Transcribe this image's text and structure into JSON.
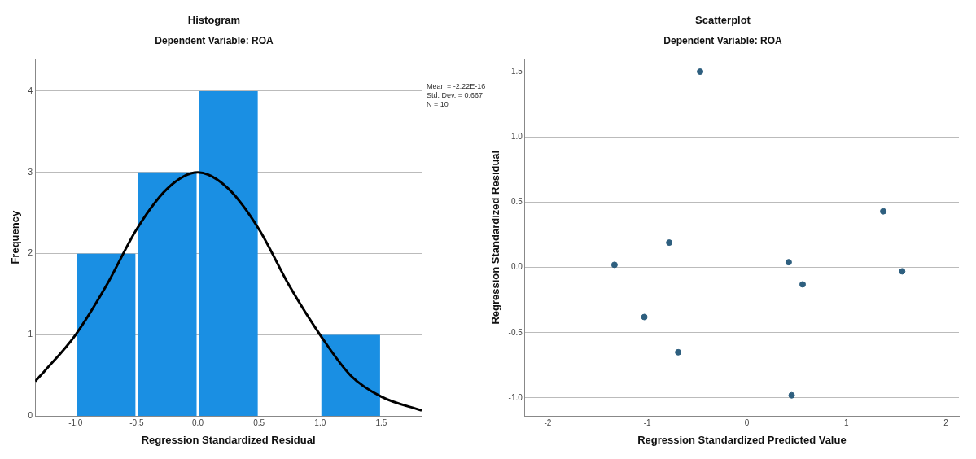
{
  "chart_data": [
    {
      "type": "histogram",
      "title": "Histogram",
      "subtitle": "Dependent Variable: ROA",
      "xlabel": "Regression Standardized Residual",
      "ylabel": "Frequency",
      "bins": [
        -1.0,
        -0.5,
        0.0,
        0.5,
        1.0,
        1.5
      ],
      "values": [
        2,
        3,
        4,
        0,
        1
      ],
      "color": "#1a8fe3",
      "series": [
        {
          "type": "line",
          "color": "#000000",
          "x": [
            -1.33,
            -1.25,
            -1.0,
            -0.75,
            -0.5,
            -0.25,
            0.0,
            0.25,
            0.5,
            0.75,
            1.0,
            1.25,
            1.5,
            1.83
          ],
          "values": [
            0.43,
            0.56,
            1.0,
            1.6,
            2.3,
            2.8,
            3.0,
            2.8,
            2.3,
            1.6,
            1.0,
            0.5,
            0.24,
            0.07
          ]
        }
      ],
      "xlim": [
        -1.33,
        1.83
      ],
      "xticks": [
        {
          "value": -1.0,
          "label": "-1.0"
        },
        {
          "value": -0.5,
          "label": "-0.5"
        },
        {
          "value": 0,
          "label": "0.0"
        },
        {
          "value": 0.5,
          "label": "0.5"
        },
        {
          "value": 1.0,
          "label": "1.0"
        },
        {
          "value": 1.5,
          "label": "1.5"
        }
      ],
      "ylim": [
        0,
        4.4
      ],
      "yticks": [
        0,
        1,
        2,
        3,
        4
      ],
      "grid": "y",
      "annotations": [
        "Mean = -2.22E-16",
        "Std. Dev. = 0.667",
        "N = 10"
      ]
    },
    {
      "type": "scatter",
      "title": "Scatterplot",
      "subtitle": "Dependent Variable: ROA",
      "xlabel": "Regression Standardized Predicted Value",
      "ylabel": "Regression Standardized Residual",
      "x": [
        -0.47,
        -1.33,
        -0.78,
        -1.03,
        -0.69,
        0.42,
        0.56,
        0.45,
        1.37,
        1.56
      ],
      "values": [
        1.5,
        0.02,
        0.19,
        -0.38,
        -0.65,
        0.04,
        -0.13,
        -0.98,
        0.43,
        -0.03
      ],
      "color": "#2e5f7f",
      "marker": "circle",
      "xlim": [
        -2.23,
        2.13
      ],
      "xticks": [
        -2,
        -1,
        0,
        1,
        2
      ],
      "ylim": [
        -1.14,
        1.6
      ],
      "yticks": [
        {
          "value": -1.0,
          "label": "-1.0"
        },
        {
          "value": -0.5,
          "label": "-0.5"
        },
        {
          "value": 0,
          "label": "0.0"
        },
        {
          "value": 0.5,
          "label": "0.5"
        },
        {
          "value": 1.0,
          "label": "1.0"
        },
        {
          "value": 1.5,
          "label": "1.5"
        }
      ],
      "grid": "y"
    }
  ]
}
